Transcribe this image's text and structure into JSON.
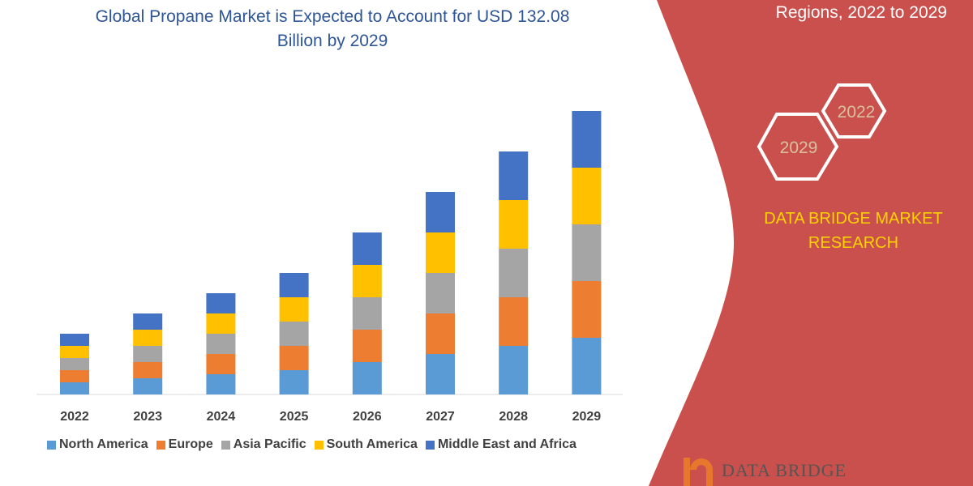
{
  "header": {
    "title_line1": "Global Propane Market is Expected to Account for USD 132.08",
    "title_line2": "Billion by 2029",
    "subtitle": "Regions, 2022 to 2029"
  },
  "badges": {
    "hex_end": "2029",
    "hex_start": "2022"
  },
  "brand": {
    "line1": "DATA BRIDGE MARKET",
    "line2": "RESEARCH",
    "logo_text": "DATA BRIDGE"
  },
  "colors": {
    "panel": "#c9504c",
    "brand_text": "#ffd200",
    "title": "#2e5597"
  },
  "chart_data": {
    "type": "bar",
    "stacked": true,
    "categories": [
      "2022",
      "2023",
      "2024",
      "2025",
      "2026",
      "2027",
      "2028",
      "2029"
    ],
    "series": [
      {
        "name": "North America",
        "color": "#5b9bd5",
        "values": [
          3,
          4,
          5,
          6,
          8,
          10,
          12,
          14
        ]
      },
      {
        "name": "Europe",
        "color": "#ed7d31",
        "values": [
          3,
          4,
          5,
          6,
          8,
          10,
          12,
          14
        ]
      },
      {
        "name": "Asia Pacific",
        "color": "#a5a5a5",
        "values": [
          3,
          4,
          5,
          6,
          8,
          10,
          12,
          14
        ]
      },
      {
        "name": "South America",
        "color": "#ffc000",
        "values": [
          3,
          4,
          5,
          6,
          8,
          10,
          12,
          14
        ]
      },
      {
        "name": "Middle East and Africa",
        "color": "#4472c4",
        "values": [
          3,
          4,
          5,
          6,
          8,
          10,
          12,
          14
        ]
      }
    ],
    "ylim": [
      0,
      70
    ],
    "y_axis_shown": false,
    "grid": false,
    "legend_position": "bottom"
  }
}
